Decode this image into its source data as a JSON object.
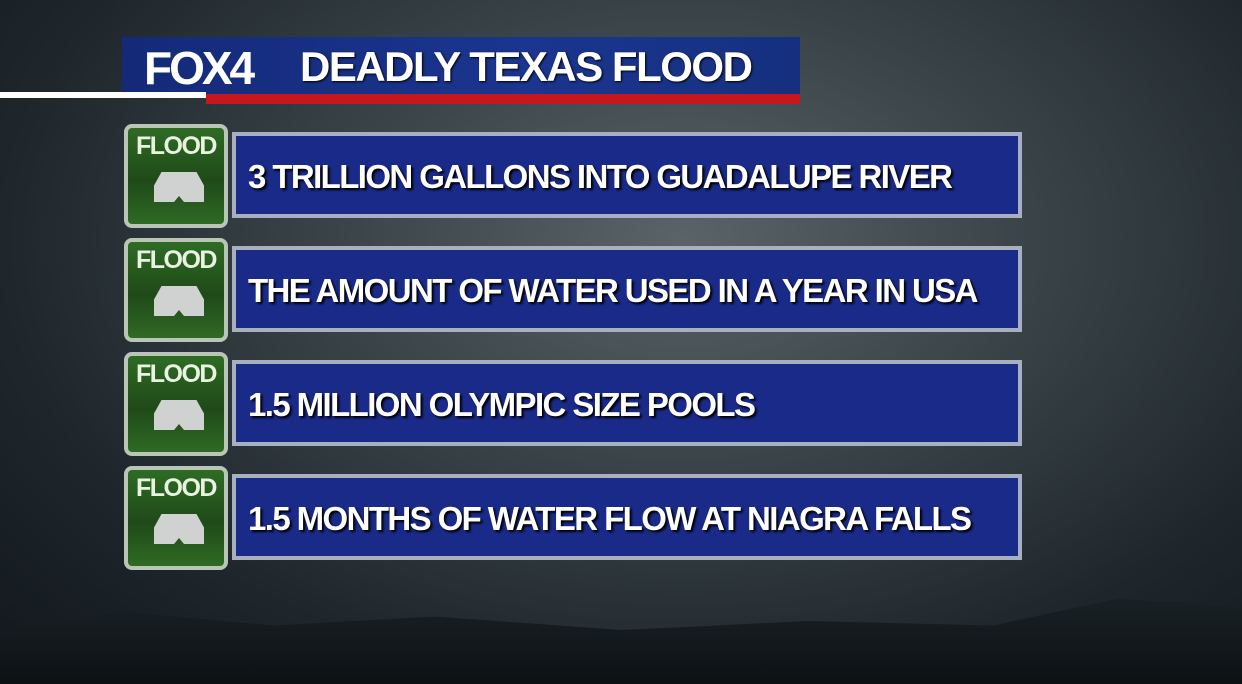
{
  "header": {
    "logo": "FOX4",
    "title": "DEADLY TEXAS FLOOD"
  },
  "colors": {
    "header_blue": "#1b3590",
    "red_bar": "#c8161d",
    "icon_green": "#2f6b25",
    "box_blue": "#1a2a88"
  },
  "items": [
    {
      "icon_label": "FLOOD",
      "icon": "flood-house-icon",
      "text": "3 TRILLION GALLONS INTO GUADALUPE RIVER"
    },
    {
      "icon_label": "FLOOD",
      "icon": "flood-house-icon",
      "text": "THE AMOUNT OF WATER USED IN A YEAR IN USA"
    },
    {
      "icon_label": "FLOOD",
      "icon": "flood-house-icon",
      "text": "1.5 MILLION OLYMPIC SIZE POOLS"
    },
    {
      "icon_label": "FLOOD",
      "icon": "flood-house-icon",
      "text": "1.5 MONTHS OF WATER FLOW AT NIAGRA FALLS"
    }
  ]
}
